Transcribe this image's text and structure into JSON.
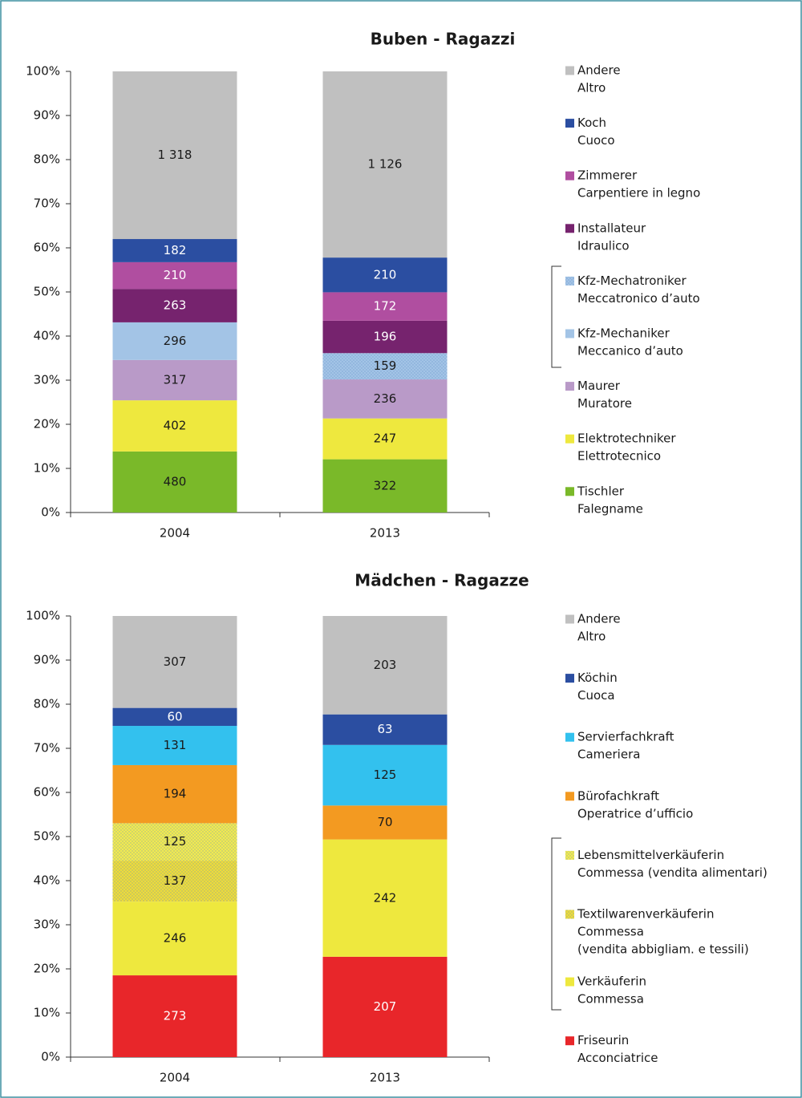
{
  "chart_data": [
    {
      "type": "bar",
      "stacked": true,
      "normalized": true,
      "title": "Buben - Ragazzi",
      "categories": [
        "2004",
        "2013"
      ],
      "ylim": [
        0,
        100
      ],
      "yticks": [
        {
          "value": 0,
          "label": "0%"
        },
        {
          "value": 10,
          "label": "10%"
        },
        {
          "value": 20,
          "label": "20%"
        },
        {
          "value": 30,
          "label": "30%"
        },
        {
          "value": 40,
          "label": "40%"
        },
        {
          "value": 50,
          "label": "50%"
        },
        {
          "value": 60,
          "label": "60%"
        },
        {
          "value": 70,
          "label": "70%"
        },
        {
          "value": 80,
          "label": "80%"
        },
        {
          "value": 90,
          "label": "90%"
        },
        {
          "value": 100,
          "label": "100%"
        }
      ],
      "series": [
        {
          "name": "Tischler",
          "translation": [
            "Falegname"
          ],
          "color": "#7ab929",
          "text_color": "#1a1a1a",
          "values": [
            480,
            322
          ]
        },
        {
          "name": "Elektrotechniker",
          "translation": [
            "Elettrotecnico"
          ],
          "color": "#eee83e",
          "text_color": "#1a1a1a",
          "values": [
            402,
            247
          ]
        },
        {
          "name": "Maurer",
          "translation": [
            "Muratore"
          ],
          "color": "#b99ac8",
          "text_color": "#1a1a1a",
          "values": [
            317,
            236
          ]
        },
        {
          "name": "Kfz-Mechaniker",
          "translation": [
            "Meccanico d’auto"
          ],
          "color": "#a3c4e6",
          "text_color": "#1a1a1a",
          "values": [
            296,
            null
          ]
        },
        {
          "name": "Kfz-Mechatroniker",
          "translation": [
            "Meccatronico d’auto"
          ],
          "color": "#a3c4e6",
          "pattern": "dots",
          "text_color": "#1a1a1a",
          "values": [
            null,
            159
          ]
        },
        {
          "name": "Installateur",
          "translation": [
            "Idraulico"
          ],
          "color": "#76236e",
          "text_color": "#ffffff",
          "values": [
            263,
            196
          ]
        },
        {
          "name": "Zimmerer",
          "translation": [
            "Carpentiere in legno"
          ],
          "color": "#b04ea0",
          "text_color": "#ffffff",
          "values": [
            210,
            172
          ]
        },
        {
          "name": "Koch",
          "translation": [
            "Cuoco"
          ],
          "color": "#2b4ea1",
          "text_color": "#ffffff",
          "values": [
            182,
            210
          ]
        },
        {
          "name": "Andere",
          "translation": [
            "Altro"
          ],
          "color": "#c0c0c0",
          "text_color": "#1a1a1a",
          "values": [
            1318,
            1126
          ],
          "value_labels": [
            "1 318",
            "1 126"
          ]
        }
      ]
    },
    {
      "type": "bar",
      "stacked": true,
      "normalized": true,
      "title": "Mädchen - Ragazze",
      "categories": [
        "2004",
        "2013"
      ],
      "ylim": [
        0,
        100
      ],
      "yticks": [
        {
          "value": 0,
          "label": "0%"
        },
        {
          "value": 10,
          "label": "10%"
        },
        {
          "value": 20,
          "label": "20%"
        },
        {
          "value": 30,
          "label": "30%"
        },
        {
          "value": 40,
          "label": "40%"
        },
        {
          "value": 50,
          "label": "50%"
        },
        {
          "value": 60,
          "label": "60%"
        },
        {
          "value": 70,
          "label": "70%"
        },
        {
          "value": 80,
          "label": "80%"
        },
        {
          "value": 90,
          "label": "90%"
        },
        {
          "value": 100,
          "label": "100%"
        }
      ],
      "series": [
        {
          "name": "Friseurin",
          "translation": [
            "Acconciatrice"
          ],
          "color": "#e8262a",
          "text_color": "#ffffff",
          "values": [
            273,
            207
          ]
        },
        {
          "name": "Verkäuferin",
          "translation": [
            "Commessa"
          ],
          "color": "#eee83e",
          "text_color": "#1a1a1a",
          "values": [
            246,
            242
          ]
        },
        {
          "name": "Textilwarenverkäuferin",
          "translation": [
            "Commessa",
            "(vendita abbigliam. e tessili)"
          ],
          "color": "#eedc3a",
          "pattern": "dots",
          "text_color": "#1a1a1a",
          "values": [
            137,
            null
          ]
        },
        {
          "name": "Lebensmittelverkäuferin",
          "translation": [
            "Commessa (vendita alimentari)"
          ],
          "color": "#f2ea50",
          "pattern": "dots",
          "text_color": "#1a1a1a",
          "values": [
            125,
            null
          ]
        },
        {
          "name": "Bürofachkraft",
          "translation": [
            "Operatrice d’ufficio"
          ],
          "color": "#f39a21",
          "text_color": "#1a1a1a",
          "values": [
            194,
            70
          ]
        },
        {
          "name": "Servierfachkraft",
          "translation": [
            "Cameriera"
          ],
          "color": "#33c1ee",
          "text_color": "#1a1a1a",
          "values": [
            131,
            125
          ]
        },
        {
          "name": "Köchin",
          "translation": [
            "Cuoca"
          ],
          "color": "#2b4ea1",
          "text_color": "#ffffff",
          "values": [
            60,
            63
          ]
        },
        {
          "name": "Andere",
          "translation": [
            "Altro"
          ],
          "color": "#c0c0c0",
          "text_color": "#1a1a1a",
          "values": [
            307,
            203
          ]
        }
      ]
    }
  ]
}
